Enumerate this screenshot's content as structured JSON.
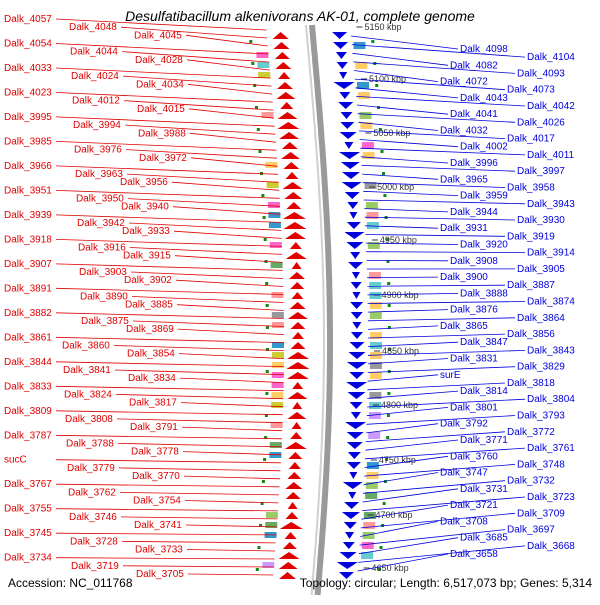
{
  "title": "Desulfatibacillum alkenivorans AK-01, complete genome",
  "accession": "Accession: NC_011768",
  "topology": "Topology: circular; Length: 6,517,073 bp; Genes: 5,314",
  "colors": {
    "forward": "#e00000",
    "reverse": "#0000dd",
    "tick": "#118811",
    "backbone": "#9a9a9a"
  },
  "scale_labels": [
    {
      "text": "5150 kbp"
    },
    {
      "text": "5100 kbp"
    },
    {
      "text": "5050 kbp"
    },
    {
      "text": "5000 kbp"
    },
    {
      "text": "4950 kbp"
    },
    {
      "text": "4900 kbp"
    },
    {
      "text": "4850 kbp"
    },
    {
      "text": "4800 kbp"
    },
    {
      "text": "4750 kbp"
    },
    {
      "text": "4700 kbp"
    },
    {
      "text": "4650 kbp"
    }
  ],
  "left_labels": [
    "Dalk_4057",
    "Dalk_4048",
    "Dalk_4045",
    "Dalk_4054",
    "Dalk_4044",
    "Dalk_4028",
    "Dalk_4033",
    "Dalk_4024",
    "Dalk_4034",
    "Dalk_4023",
    "Dalk_4012",
    "Dalk_4015",
    "Dalk_3995",
    "Dalk_3994",
    "Dalk_3988",
    "Dalk_3985",
    "Dalk_3976",
    "Dalk_3972",
    "Dalk_3966",
    "Dalk_3963",
    "Dalk_3956",
    "Dalk_3951",
    "Dalk_3950",
    "Dalk_3940",
    "Dalk_3939",
    "Dalk_3942",
    "Dalk_3933",
    "Dalk_3918",
    "Dalk_3916",
    "Dalk_3915",
    "Dalk_3907",
    "Dalk_3903",
    "Dalk_3902",
    "Dalk_3891",
    "Dalk_3890",
    "Dalk_3885",
    "Dalk_3882",
    "Dalk_3875",
    "Dalk_3869",
    "Dalk_3861",
    "Dalk_3860",
    "Dalk_3854",
    "Dalk_3844",
    "Dalk_3841",
    "Dalk_3834",
    "Dalk_3833",
    "Dalk_3824",
    "Dalk_3817",
    "Dalk_3809",
    "Dalk_3808",
    "Dalk_3791",
    "Dalk_3787",
    "Dalk_3788",
    "Dalk_3778",
    "sucC",
    "Dalk_3779",
    "Dalk_3770",
    "Dalk_3767",
    "Dalk_3762",
    "Dalk_3754",
    "Dalk_3755",
    "Dalk_3746",
    "Dalk_3741",
    "Dalk_3745",
    "Dalk_3728",
    "Dalk_3733",
    "Dalk_3734",
    "Dalk_3719",
    "Dalk_3705"
  ],
  "right_labels": [
    "Dalk_4098",
    "Dalk_4104",
    "Dalk_4082",
    "Dalk_4093",
    "Dalk_4072",
    "Dalk_4073",
    "Dalk_4043",
    "Dalk_4042",
    "Dalk_4041",
    "Dalk_4026",
    "Dalk_4032",
    "Dalk_4017",
    "Dalk_4002",
    "Dalk_4011",
    "Dalk_3996",
    "Dalk_3997",
    "Dalk_3965",
    "Dalk_3958",
    "Dalk_3959",
    "Dalk_3943",
    "Dalk_3944",
    "Dalk_3930",
    "Dalk_3931",
    "Dalk_3919",
    "Dalk_3920",
    "Dalk_3914",
    "Dalk_3908",
    "Dalk_3905",
    "Dalk_3900",
    "Dalk_3887",
    "Dalk_3888",
    "Dalk_3874",
    "Dalk_3876",
    "Dalk_3864",
    "Dalk_3865",
    "Dalk_3856",
    "Dalk_3847",
    "Dalk_3843",
    "Dalk_3831",
    "Dalk_3829",
    "surE",
    "Dalk_3818",
    "Dalk_3814",
    "Dalk_3804",
    "Dalk_3801",
    "Dalk_3793",
    "Dalk_3792",
    "Dalk_3772",
    "Dalk_3771",
    "Dalk_3761",
    "Dalk_3760",
    "Dalk_3748",
    "Dalk_3747",
    "Dalk_3732",
    "Dalk_3731",
    "Dalk_3723",
    "Dalk_3721",
    "Dalk_3709",
    "Dalk_3708",
    "Dalk_3697",
    "Dalk_3685",
    "Dalk_3668",
    "Dalk_3658"
  ]
}
